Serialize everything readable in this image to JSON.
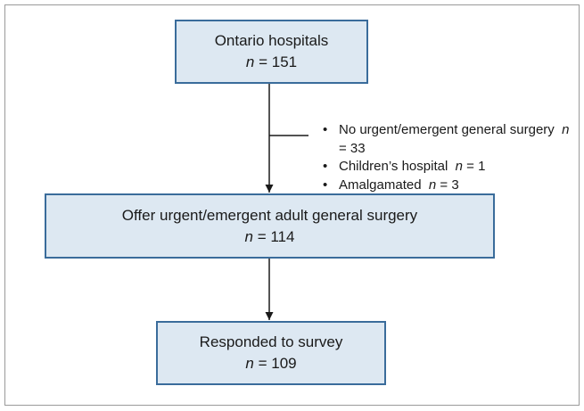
{
  "nodes": [
    {
      "label": "Ontario hospitals",
      "count": "n = 151"
    },
    {
      "label": "Offer urgent/emergent adult general surgery",
      "count": "n = 114"
    },
    {
      "label": "Responded to survey",
      "count": "n = 109"
    }
  ],
  "exclusions": [
    {
      "text": "No urgent/emergent general surgery",
      "count": "n = 33"
    },
    {
      "text": "Children’s hospital",
      "count": "n = 1"
    },
    {
      "text": "Amalgamated",
      "count": "n = 3"
    }
  ]
}
